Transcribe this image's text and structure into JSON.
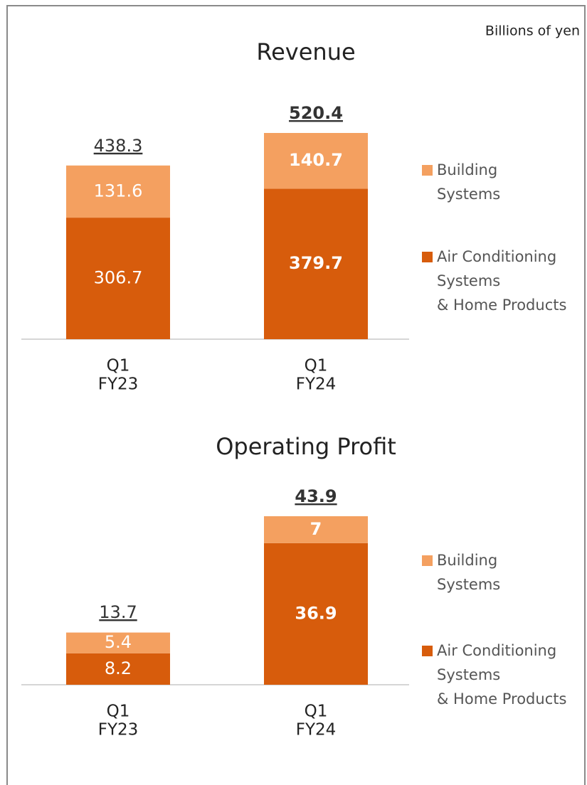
{
  "note": "Billions of yen",
  "chart_data": [
    {
      "type": "stacked-bar",
      "title": "Revenue",
      "categories": [
        [
          "Q1",
          "FY23"
        ],
        [
          "Q1",
          "FY24"
        ]
      ],
      "emphasis": [
        false,
        true
      ],
      "series": [
        {
          "name": [
            "Air Conditioning",
            "Systems",
            "& Home Products"
          ],
          "color": "#d75c0c",
          "values": [
            306.7,
            379.7
          ]
        },
        {
          "name": [
            "Building",
            "Systems"
          ],
          "color": "#f4a060",
          "values": [
            131.6,
            140.7
          ]
        }
      ],
      "totals": [
        438.3,
        520.4
      ]
    },
    {
      "type": "stacked-bar",
      "title": "Operating Profit",
      "categories": [
        [
          "Q1",
          "FY23"
        ],
        [
          "Q1",
          "FY24"
        ]
      ],
      "emphasis": [
        false,
        true
      ],
      "series": [
        {
          "name": [
            "Air Conditioning",
            "Systems",
            "& Home Products"
          ],
          "color": "#d75c0c",
          "values": [
            8.2,
            36.9
          ]
        },
        {
          "name": [
            "Building",
            "Systems"
          ],
          "color": "#f4a060",
          "values": [
            5.4,
            7.0
          ]
        }
      ],
      "totals": [
        13.7,
        43.9
      ]
    }
  ]
}
